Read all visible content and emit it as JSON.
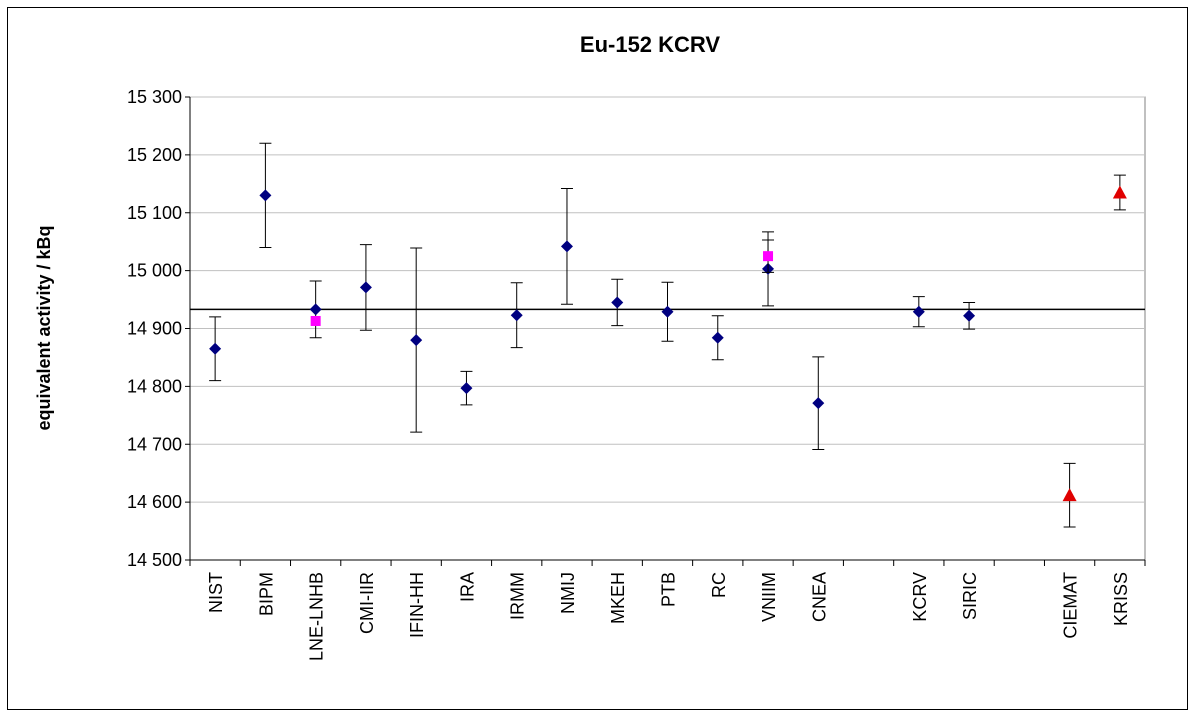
{
  "chart_data": {
    "type": "errorbar-scatter",
    "title": "Eu-152 KCRV",
    "y_label": "equivalent activity / kBq",
    "categories": [
      "NIST",
      "BIPM",
      "LNE-LNHB",
      "CMI-IIR",
      "IFIN-HH",
      "IRA",
      "IRMM",
      "NMIJ",
      "MKEH",
      "PTB",
      "RC",
      "VNIIM",
      "CNEA",
      null,
      "KCRV",
      "SIRIC",
      null,
      "CIEMAT",
      "KRISS"
    ],
    "series": [
      {
        "color": "#000080",
        "marker": "diamond",
        "values": [
          14865,
          15130,
          14933,
          14971,
          14880,
          14797,
          14923,
          15042,
          14945,
          14929,
          14884,
          15003,
          14771,
          null,
          14929,
          14922,
          null,
          null,
          null
        ],
        "errors": [
          55,
          90,
          49,
          74,
          159,
          29,
          56,
          100,
          40,
          51,
          38,
          64,
          80,
          null,
          26,
          23,
          null,
          null,
          null
        ]
      },
      {
        "color": "#ff00ff",
        "marker": "square",
        "values": [
          null,
          null,
          14913,
          null,
          null,
          null,
          null,
          null,
          null,
          null,
          null,
          15025,
          null,
          null,
          null,
          null,
          null,
          null,
          null
        ],
        "errors": [
          null,
          null,
          null,
          null,
          null,
          null,
          null,
          null,
          null,
          null,
          null,
          28,
          null,
          null,
          null,
          null,
          null,
          null,
          null
        ]
      },
      {
        "color": "#e00000",
        "marker": "triangle",
        "values": [
          null,
          null,
          null,
          null,
          null,
          null,
          null,
          null,
          null,
          null,
          null,
          null,
          null,
          null,
          null,
          null,
          null,
          14612,
          15135
        ],
        "errors": [
          null,
          null,
          null,
          null,
          null,
          null,
          null,
          null,
          null,
          null,
          null,
          null,
          null,
          null,
          null,
          null,
          null,
          55,
          30
        ]
      }
    ],
    "kcrv_line": 14933,
    "ylim": [
      14500,
      15300
    ],
    "yticks": [
      {
        "value": 14500,
        "label": "14 500"
      },
      {
        "value": 14600,
        "label": "14 600"
      },
      {
        "value": 14700,
        "label": "14 700"
      },
      {
        "value": 14800,
        "label": "14 800"
      },
      {
        "value": 14900,
        "label": "14 900"
      },
      {
        "value": 15000,
        "label": "15 000"
      },
      {
        "value": 15100,
        "label": "15 100"
      },
      {
        "value": 15200,
        "label": "15 200"
      },
      {
        "value": 15300,
        "label": "15 300"
      }
    ],
    "grid": true
  }
}
